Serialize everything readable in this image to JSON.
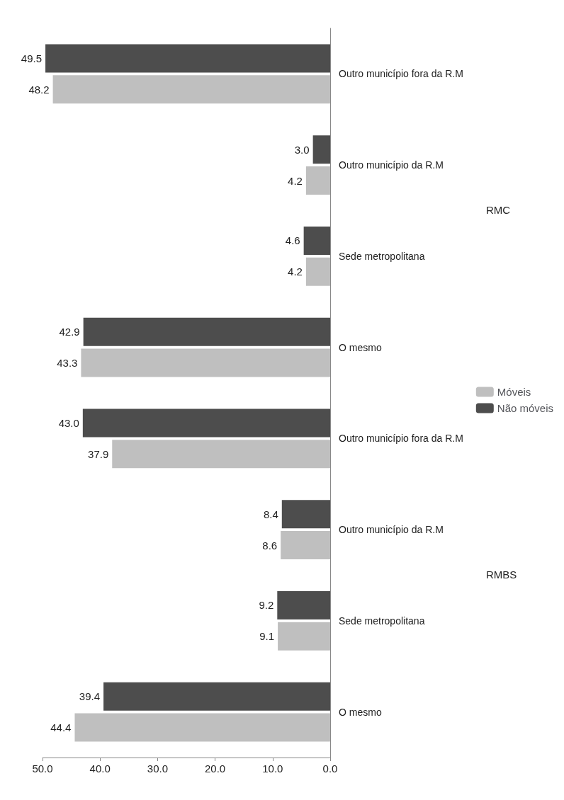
{
  "chart_data": {
    "type": "bar",
    "orientation": "horizontal",
    "categories": [
      "Outro município fora da R.M",
      "Outro município da R.M",
      "Sede metropolitana",
      "O mesmo",
      "Outro município fora da R.M",
      "Outro município da R.M",
      "Sede metropolitana",
      "O mesmo"
    ],
    "series": [
      {
        "name": "Não móveis",
        "color": "#4d4d4d",
        "values": [
          49.5,
          3.0,
          4.6,
          42.9,
          43.0,
          8.4,
          9.2,
          39.4
        ]
      },
      {
        "name": "Móveis",
        "color": "#bfbfbf",
        "values": [
          48.2,
          4.2,
          4.2,
          43.3,
          37.9,
          8.6,
          9.1,
          44.4
        ]
      }
    ],
    "xlim": [
      50,
      0
    ],
    "xticks": [
      {
        "value": 50,
        "label": "50.0"
      },
      {
        "value": 40,
        "label": "40.0"
      },
      {
        "value": 30,
        "label": "30.0"
      },
      {
        "value": 20,
        "label": "20.0"
      },
      {
        "value": 10,
        "label": "10.0"
      },
      {
        "value": 0,
        "label": "0.0"
      }
    ],
    "value_labels": [
      [
        "49.5",
        "3.0",
        "4.6",
        "42.9",
        "43.0",
        "8.4",
        "9.2",
        "39.4"
      ],
      [
        "48.2",
        "4.2",
        "4.2",
        "43.3",
        "37.9",
        "8.6",
        "9.1",
        "44.4"
      ]
    ],
    "annotations": [
      "RMC",
      "RMBS"
    ],
    "legend": "right",
    "grid": false
  }
}
